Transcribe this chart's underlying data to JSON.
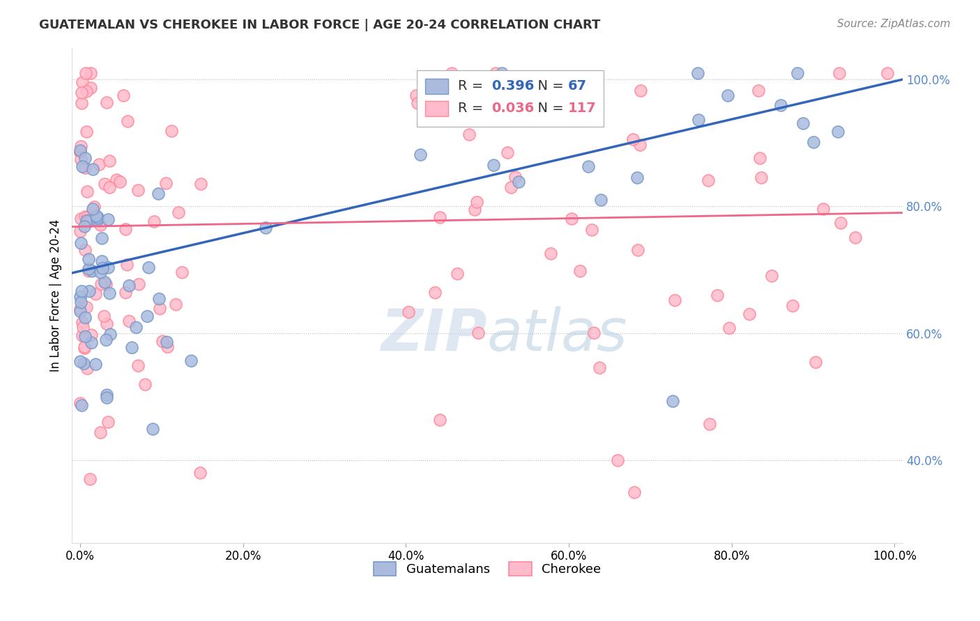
{
  "title": "GUATEMALAN VS CHEROKEE IN LABOR FORCE | AGE 20-24 CORRELATION CHART",
  "source_text": "Source: ZipAtlas.com",
  "ylabel": "In Labor Force | Age 20-24",
  "watermark": "ZIPatlas",
  "legend_guatemalan": "Guatemalans",
  "legend_cherokee": "Cherokee",
  "R_guatemalan": 0.396,
  "N_guatemalan": 67,
  "R_cherokee": 0.036,
  "N_cherokee": 117,
  "color_guatemalan_face": "#AABBDD",
  "color_guatemalan_edge": "#7799CC",
  "color_cherokee_face": "#FFBBCC",
  "color_cherokee_edge": "#FF8899",
  "color_trend_guatemalan": "#3366BB",
  "color_trend_cherokee": "#EE6688",
  "color_ytick_label": "#5588CC",
  "xlim": [
    -0.01,
    1.01
  ],
  "ylim": [
    0.27,
    1.05
  ],
  "xticks": [
    0.0,
    0.2,
    0.4,
    0.6,
    0.8,
    1.0
  ],
  "yticks": [
    0.4,
    0.6,
    0.8,
    1.0
  ],
  "xticklabels": [
    "0.0%",
    "20.0%",
    "40.0%",
    "60.0%",
    "80.0%",
    "100.0%"
  ],
  "yticklabels": [
    "40.0%",
    "60.0%",
    "80.0%",
    "100.0%"
  ],
  "trend_g_x0": 0.0,
  "trend_g_y0": 0.695,
  "trend_g_x1": 1.0,
  "trend_g_y1": 1.0,
  "trend_c_x0": 0.0,
  "trend_c_y0": 0.768,
  "trend_c_x1": 1.0,
  "trend_c_y1": 0.79
}
